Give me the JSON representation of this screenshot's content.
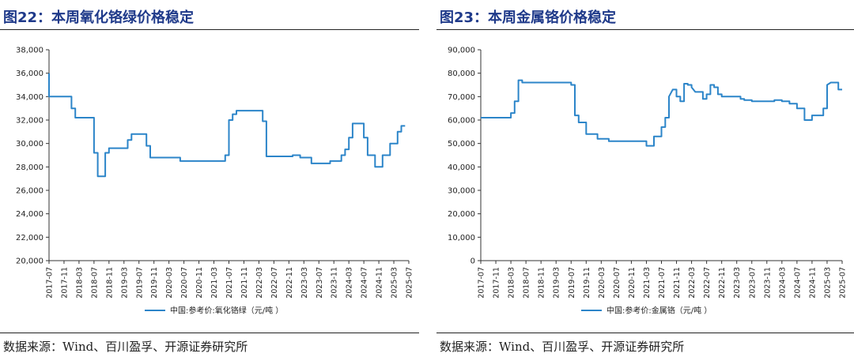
{
  "figures": [
    {
      "title": "图22：本周氧化铬绿价格稳定",
      "source": "数据来源：Wind、百川盈孚、开源证券研究所"
    },
    {
      "title": "图23：本周金属铬价格稳定",
      "source": "数据来源：Wind、百川盈孚、开源证券研究所"
    }
  ],
  "chart_data": [
    {
      "type": "line",
      "title": "",
      "xlabel": "",
      "ylabel": "",
      "ylim": [
        20000,
        38000
      ],
      "y_ticks": [
        20000,
        22000,
        24000,
        26000,
        28000,
        30000,
        32000,
        34000,
        36000,
        38000
      ],
      "y_tick_labels": [
        "20,000",
        "22,000",
        "24,000",
        "26,000",
        "28,000",
        "30,000",
        "32,000",
        "34,000",
        "36,000",
        "38,000"
      ],
      "x_range": [
        "2017-07",
        "2025-07"
      ],
      "x_tick_labels": [
        "2017-07",
        "2017-11",
        "2018-03",
        "2018-07",
        "2018-11",
        "2019-03",
        "2019-07",
        "2019-11",
        "2020-03",
        "2020-07",
        "2020-11",
        "2021-03",
        "2021-07",
        "2021-11",
        "2022-03",
        "2022-07",
        "2022-11",
        "2023-03",
        "2023-07",
        "2023-11",
        "2024-03",
        "2024-07",
        "2024-11",
        "2025-03",
        "2025-07"
      ],
      "grid": false,
      "legend_position": "bottom",
      "series": [
        {
          "name": "中国:参考价:氧化铬绿（元/吨 ）",
          "color": "#2c85c9",
          "x": [
            "2017-07",
            "2017-07",
            "2017-08",
            "2017-08",
            "2018-01",
            "2018-01",
            "2018-02",
            "2018-02",
            "2018-07",
            "2018-07",
            "2018-08",
            "2018-08",
            "2018-10",
            "2018-10",
            "2018-11",
            "2018-11",
            "2019-04",
            "2019-04",
            "2019-05",
            "2019-05",
            "2019-09",
            "2019-09",
            "2019-10",
            "2019-10",
            "2020-06",
            "2020-06",
            "2021-06",
            "2021-06",
            "2021-07",
            "2021-07",
            "2021-08",
            "2021-08",
            "2021-09",
            "2021-09",
            "2022-04",
            "2022-04",
            "2022-05",
            "2022-05",
            "2022-06",
            "2022-06",
            "2022-12",
            "2022-12",
            "2023-02",
            "2023-02",
            "2023-05",
            "2023-05",
            "2023-07",
            "2023-07",
            "2023-10",
            "2023-10",
            "2024-01",
            "2024-01",
            "2024-02",
            "2024-02",
            "2024-03",
            "2024-03",
            "2024-04",
            "2024-04",
            "2024-05",
            "2024-05",
            "2024-07",
            "2024-07",
            "2024-08",
            "2024-08",
            "2024-10",
            "2024-10",
            "2024-11",
            "2024-11",
            "2024-12",
            "2024-12",
            "2025-02",
            "2025-02",
            "2025-04",
            "2025-04",
            "2025-05",
            "2025-05",
            "2025-06"
          ],
          "values": [
            36000,
            34000,
            34000,
            34000,
            34000,
            33000,
            33000,
            32200,
            32200,
            29200,
            29200,
            27200,
            27200,
            29200,
            29200,
            29600,
            29600,
            30300,
            30300,
            30800,
            30800,
            29800,
            29800,
            28800,
            28800,
            28500,
            28500,
            29000,
            29000,
            32000,
            32000,
            32500,
            32500,
            32800,
            32800,
            31900,
            31900,
            28900,
            28900,
            28900,
            28900,
            29000,
            29000,
            28800,
            28800,
            28300,
            28300,
            28300,
            28300,
            28500,
            28500,
            29000,
            29000,
            29500,
            29500,
            30500,
            30500,
            31700,
            31700,
            31700,
            31700,
            30500,
            30500,
            29000,
            29000,
            28000,
            28000,
            28000,
            28000,
            29000,
            29000,
            30000,
            30000,
            31000,
            31000,
            31500,
            31500
          ]
        }
      ]
    },
    {
      "type": "line",
      "title": "",
      "xlabel": "",
      "ylabel": "",
      "ylim": [
        0,
        90000
      ],
      "y_ticks": [
        0,
        10000,
        20000,
        30000,
        40000,
        50000,
        60000,
        70000,
        80000,
        90000
      ],
      "y_tick_labels": [
        "0",
        "10,000",
        "20,000",
        "30,000",
        "40,000",
        "50,000",
        "60,000",
        "70,000",
        "80,000",
        "90,000"
      ],
      "x_range": [
        "2017-07",
        "2025-07"
      ],
      "x_tick_labels": [
        "2017-07",
        "2017-11",
        "2018-03",
        "2018-07",
        "2018-11",
        "2019-03",
        "2019-07",
        "2019-11",
        "2020-03",
        "2020-07",
        "2020-11",
        "2021-03",
        "2021-07",
        "2021-11",
        "2022-03",
        "2022-07",
        "2022-11",
        "2023-03",
        "2023-07",
        "2023-11",
        "2024-03",
        "2024-07",
        "2024-11",
        "2025-03",
        "2025-07"
      ],
      "grid": false,
      "legend_position": "bottom",
      "series": [
        {
          "name": "中国:参考价:金属铬（元/吨 ）",
          "color": "#2c85c9",
          "x": [
            "2017-07",
            "2018-03",
            "2018-03",
            "2018-04",
            "2018-04",
            "2018-05",
            "2018-05",
            "2018-06",
            "2018-06",
            "2018-07",
            "2018-07",
            "2018-08",
            "2018-08",
            "2019-07",
            "2019-07",
            "2019-08",
            "2019-08",
            "2019-09",
            "2019-09",
            "2019-11",
            "2019-11",
            "2020-02",
            "2020-02",
            "2020-05",
            "2020-05",
            "2021-03",
            "2021-03",
            "2021-05",
            "2021-05",
            "2021-07",
            "2021-07",
            "2021-08",
            "2021-08",
            "2021-09",
            "2021-09",
            "2021-10",
            "2021-11",
            "2021-11",
            "2021-12",
            "2021-12",
            "2022-01",
            "2022-01",
            "2022-02",
            "2022-02",
            "2022-03",
            "2022-03",
            "2022-04",
            "2022-06",
            "2022-06",
            "2022-07",
            "2022-07",
            "2022-08",
            "2022-08",
            "2022-09",
            "2022-09",
            "2022-10",
            "2022-10",
            "2022-11",
            "2022-11",
            "2023-02",
            "2023-02",
            "2023-04",
            "2023-04",
            "2023-05",
            "2023-05",
            "2023-07",
            "2023-07",
            "2024-01",
            "2024-01",
            "2024-03",
            "2024-03",
            "2024-05",
            "2024-05",
            "2024-07",
            "2024-07",
            "2024-09",
            "2024-09",
            "2024-10",
            "2024-10",
            "2024-11",
            "2024-11",
            "2025-02",
            "2025-02",
            "2025-03",
            "2025-03",
            "2025-04",
            "2025-04",
            "2025-06",
            "2025-06",
            "2025-07"
          ],
          "values": [
            61000,
            61000,
            63000,
            63000,
            68000,
            68000,
            77000,
            77000,
            76000,
            76000,
            76000,
            76000,
            76000,
            76000,
            75000,
            75000,
            62000,
            62000,
            59000,
            59000,
            54000,
            54000,
            52000,
            52000,
            51000,
            51000,
            49000,
            49000,
            53000,
            53000,
            57000,
            57000,
            61000,
            61000,
            70000,
            73000,
            73000,
            70000,
            70000,
            68000,
            68000,
            75500,
            75500,
            75000,
            75000,
            74000,
            72000,
            72000,
            69000,
            69000,
            71000,
            71000,
            75000,
            75000,
            74000,
            74000,
            71000,
            71000,
            70000,
            70000,
            70000,
            70000,
            69000,
            69000,
            68500,
            68500,
            68000,
            68000,
            68500,
            68500,
            68000,
            68000,
            67000,
            67000,
            65000,
            65000,
            60000,
            60000,
            60000,
            60000,
            62000,
            62000,
            65000,
            65000,
            75000,
            76000,
            76000,
            76000,
            73000,
            73000
          ]
        }
      ]
    }
  ]
}
